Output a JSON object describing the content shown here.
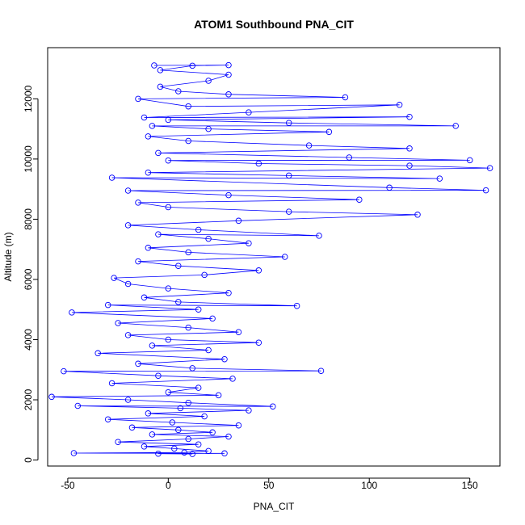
{
  "chart_data": {
    "type": "scatter",
    "title": "ATOM1 Southbound PNA_CIT",
    "xlabel": "PNA_CIT",
    "ylabel": "Altitude (m)",
    "xlim": [
      -60,
      165
    ],
    "ylim": [
      -200,
      13700
    ],
    "xticks": [
      -50,
      0,
      50,
      100,
      150
    ],
    "yticks": [
      0,
      2000,
      4000,
      6000,
      8000,
      10000,
      12000
    ],
    "xtick_labels": [
      "-50",
      "0",
      "50",
      "100",
      "150"
    ],
    "ytick_labels": [
      "0",
      "2000",
      "4000",
      "6000",
      "8000",
      "10000",
      "12000"
    ],
    "grid": false,
    "legend": "none",
    "marker": "open-circle",
    "connect_points": true,
    "series_color": "#0000ff",
    "series": [
      {
        "points": [
          [
            12,
            200
          ],
          [
            -5,
            210
          ],
          [
            28,
            220
          ],
          [
            -47,
            230
          ],
          [
            8,
            250
          ],
          [
            20,
            300
          ],
          [
            3,
            380
          ],
          [
            -12,
            450
          ],
          [
            15,
            520
          ],
          [
            -25,
            600
          ],
          [
            10,
            700
          ],
          [
            30,
            780
          ],
          [
            -8,
            850
          ],
          [
            22,
            920
          ],
          [
            5,
            1000
          ],
          [
            -18,
            1080
          ],
          [
            35,
            1150
          ],
          [
            2,
            1250
          ],
          [
            -30,
            1350
          ],
          [
            18,
            1450
          ],
          [
            -10,
            1550
          ],
          [
            40,
            1650
          ],
          [
            6,
            1720
          ],
          [
            -45,
            1800
          ],
          [
            52,
            1780
          ],
          [
            10,
            1900
          ],
          [
            -20,
            2000
          ],
          [
            -58,
            2100
          ],
          [
            25,
            2150
          ],
          [
            0,
            2250
          ],
          [
            15,
            2400
          ],
          [
            -28,
            2550
          ],
          [
            32,
            2700
          ],
          [
            -5,
            2800
          ],
          [
            -52,
            2950
          ],
          [
            76,
            2960
          ],
          [
            12,
            3050
          ],
          [
            -15,
            3200
          ],
          [
            28,
            3350
          ],
          [
            -35,
            3550
          ],
          [
            20,
            3650
          ],
          [
            -8,
            3800
          ],
          [
            45,
            3900
          ],
          [
            0,
            4000
          ],
          [
            -20,
            4150
          ],
          [
            35,
            4250
          ],
          [
            10,
            4400
          ],
          [
            -25,
            4550
          ],
          [
            22,
            4700
          ],
          [
            -48,
            4900
          ],
          [
            15,
            5000
          ],
          [
            -30,
            5150
          ],
          [
            64,
            5120
          ],
          [
            5,
            5250
          ],
          [
            -12,
            5400
          ],
          [
            30,
            5550
          ],
          [
            0,
            5700
          ],
          [
            -20,
            5850
          ],
          [
            -27,
            6050
          ],
          [
            18,
            6150
          ],
          [
            45,
            6300
          ],
          [
            5,
            6450
          ],
          [
            -15,
            6600
          ],
          [
            58,
            6750
          ],
          [
            10,
            6900
          ],
          [
            -10,
            7050
          ],
          [
            40,
            7200
          ],
          [
            20,
            7350
          ],
          [
            -5,
            7500
          ],
          [
            75,
            7450
          ],
          [
            15,
            7650
          ],
          [
            -20,
            7800
          ],
          [
            35,
            7950
          ],
          [
            124,
            8150
          ],
          [
            60,
            8250
          ],
          [
            0,
            8400
          ],
          [
            -15,
            8550
          ],
          [
            95,
            8650
          ],
          [
            30,
            8800
          ],
          [
            -20,
            8950
          ],
          [
            158,
            8960
          ],
          [
            110,
            9050
          ],
          [
            -28,
            9380
          ],
          [
            135,
            9350
          ],
          [
            60,
            9450
          ],
          [
            -10,
            9550
          ],
          [
            160,
            9700
          ],
          [
            120,
            9780
          ],
          [
            45,
            9850
          ],
          [
            0,
            9950
          ],
          [
            150,
            9960
          ],
          [
            90,
            10050
          ],
          [
            -5,
            10200
          ],
          [
            120,
            10350
          ],
          [
            70,
            10450
          ],
          [
            10,
            10600
          ],
          [
            -10,
            10750
          ],
          [
            80,
            10900
          ],
          [
            20,
            11000
          ],
          [
            -8,
            11100
          ],
          [
            143,
            11100
          ],
          [
            60,
            11200
          ],
          [
            0,
            11300
          ],
          [
            120,
            11400
          ],
          [
            -12,
            11380
          ],
          [
            40,
            11550
          ],
          [
            115,
            11800
          ],
          [
            10,
            11750
          ],
          [
            -15,
            12000
          ],
          [
            88,
            12050
          ],
          [
            30,
            12150
          ],
          [
            5,
            12250
          ],
          [
            -4,
            12400
          ],
          [
            20,
            12600
          ],
          [
            30,
            12800
          ],
          [
            -4,
            12950
          ],
          [
            12,
            13100
          ],
          [
            30,
            13120
          ],
          [
            -7,
            13110
          ]
        ]
      }
    ]
  }
}
